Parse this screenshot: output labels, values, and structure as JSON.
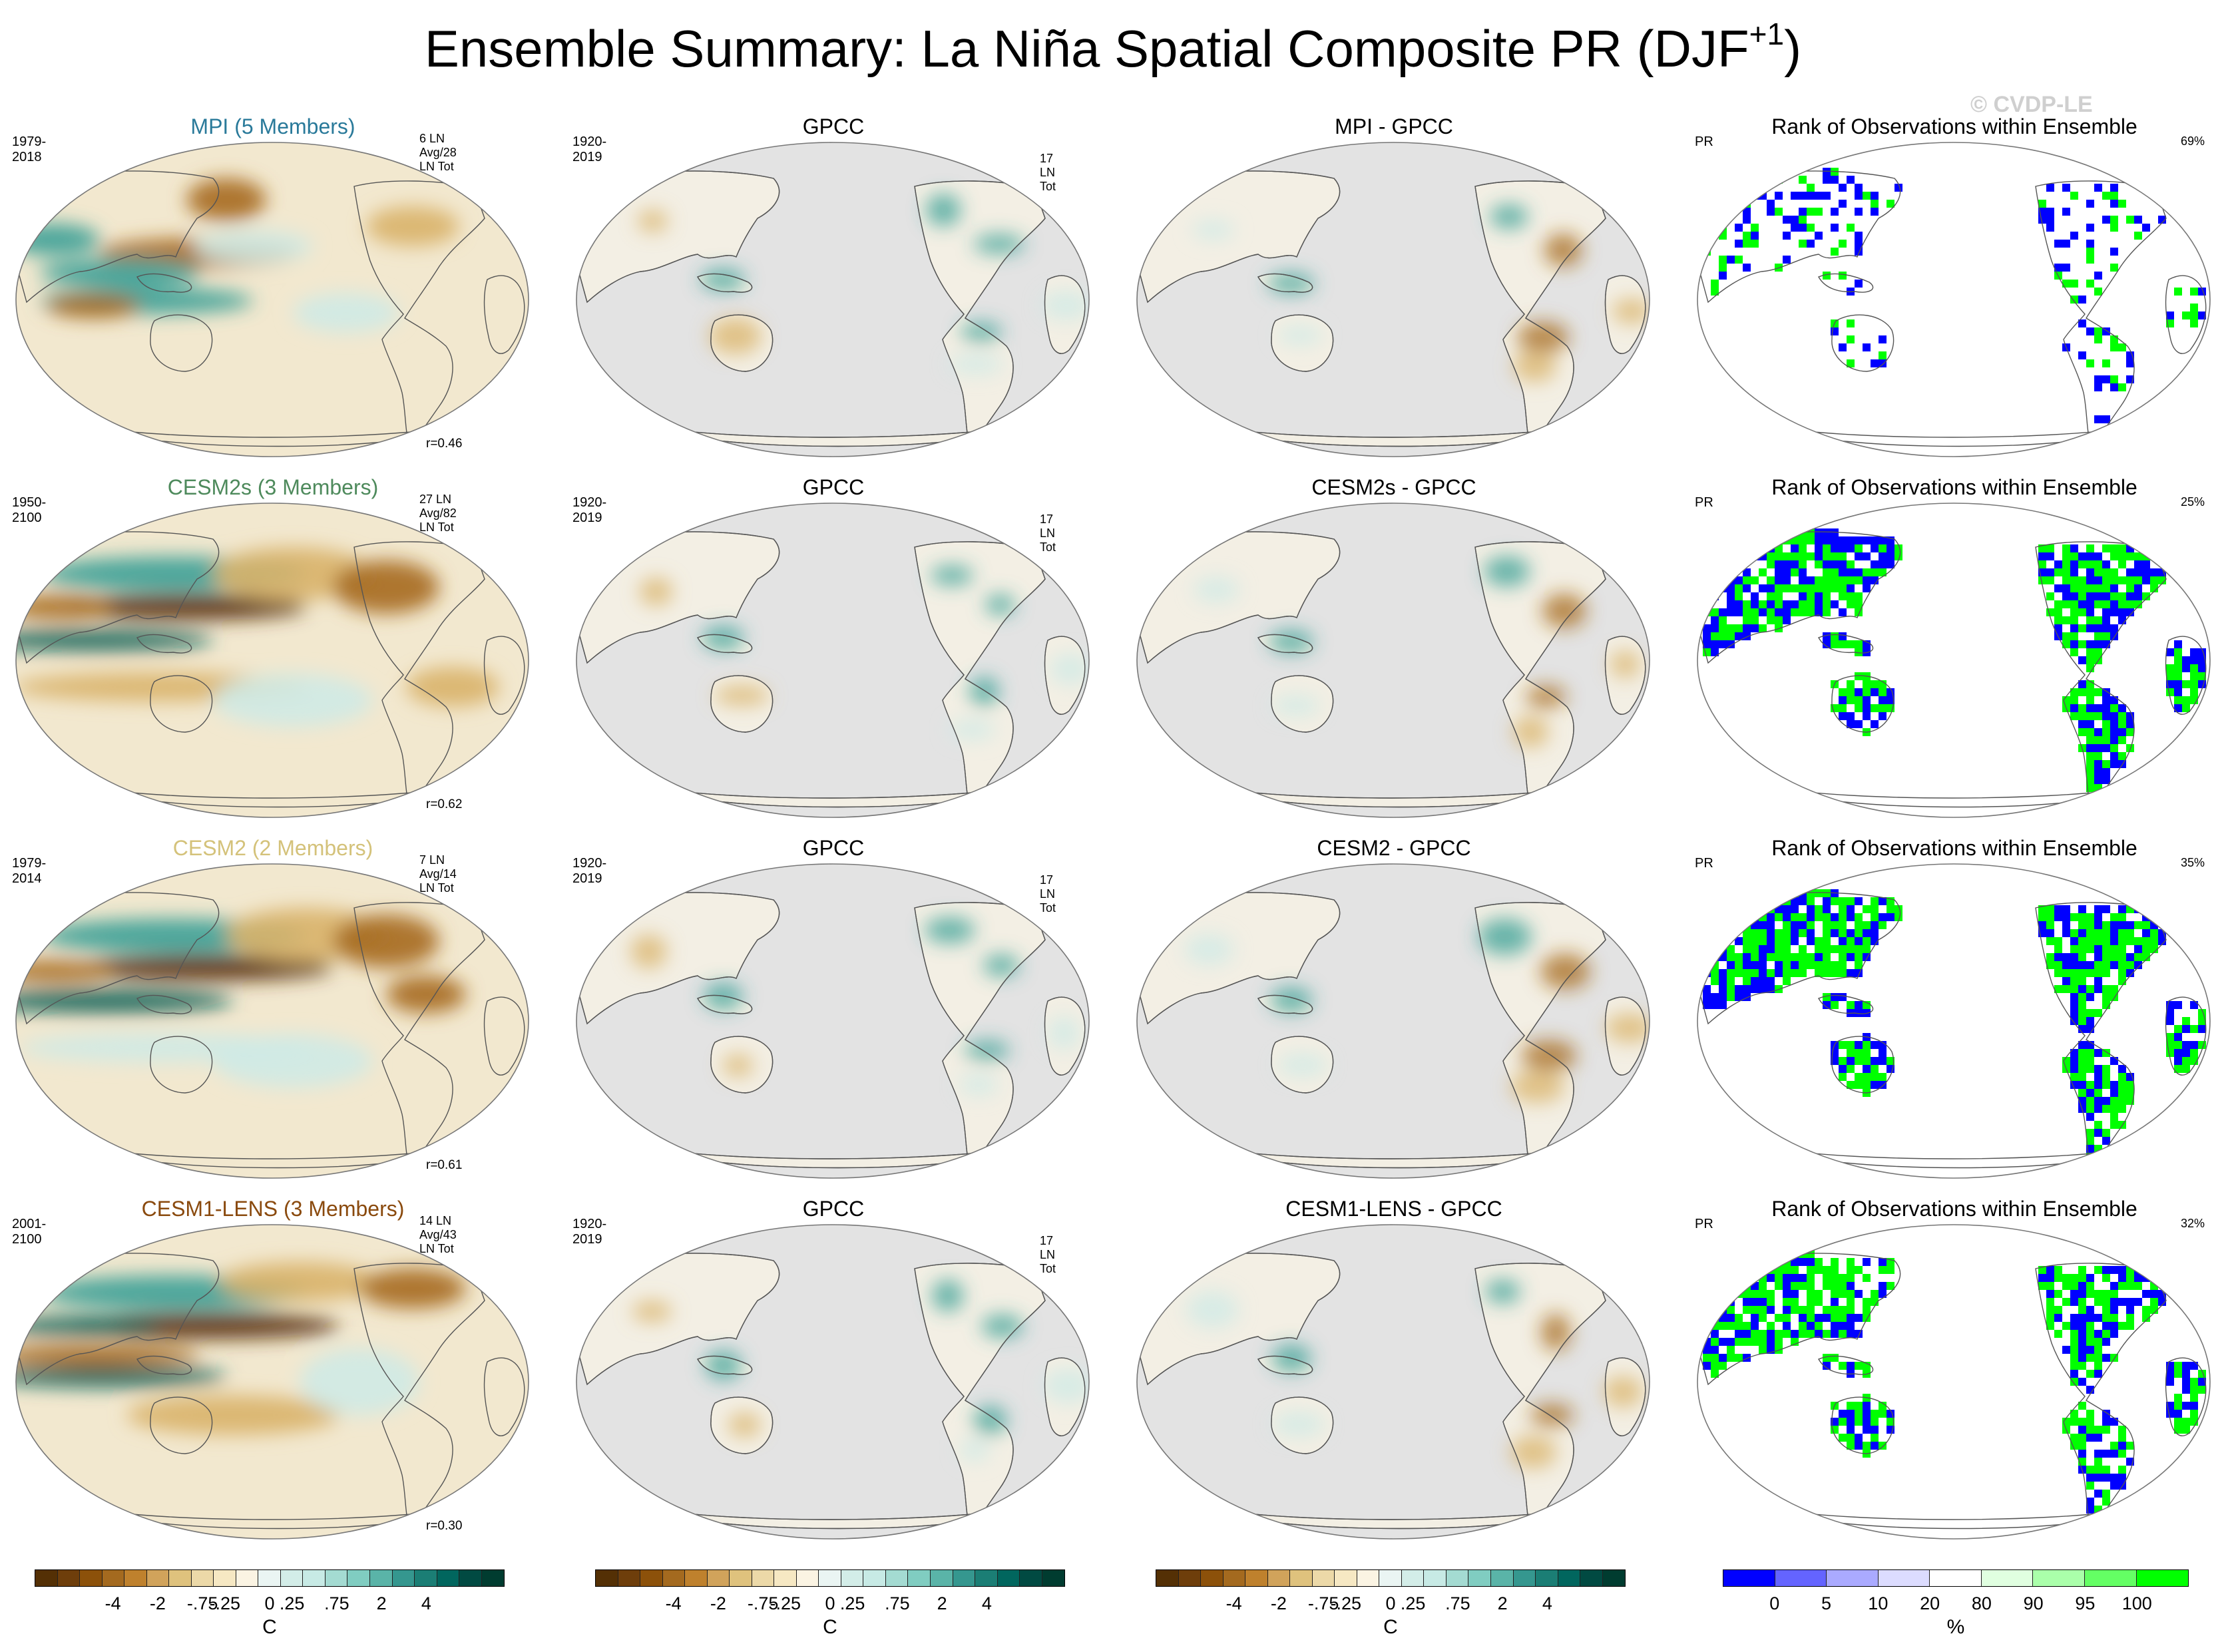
{
  "title": {
    "main": "Ensemble Summary: La Niña Spatial Composite PR (DJF",
    "sup": "+1",
    "close": ")"
  },
  "watermark": "© CVDP-LE",
  "colors": {
    "brown_dark": "#5a3208",
    "brown": "#a66a1e",
    "tan": "#d9b36a",
    "cream": "#f2e8cf",
    "teal_light": "#cfeae6",
    "teal": "#3aa096",
    "teal_dark": "#0a5f55",
    "ocean_gray": "#e3e3e3",
    "coast": "#555555",
    "rank_blue": "#0000ff",
    "rank_green": "#00ff00"
  },
  "rows": [
    {
      "model": {
        "title": "MPI (5 Members)",
        "color": "#2a7a9a",
        "years": "1979-2018",
        "count": "6 LN Avg/28 LN Tot",
        "corr": "r=0.46"
      },
      "obs": {
        "title": "GPCC",
        "years": "1920-2019",
        "count": "17 LN Tot"
      },
      "diff": {
        "title": "MPI - GPCC"
      },
      "rank": {
        "title": "Rank of Observations within Ensemble",
        "var": "PR",
        "pct": "69%"
      }
    },
    {
      "model": {
        "title": "CESM2s (3 Members)",
        "color": "#4e8a5c",
        "years": "1950-2100",
        "count": "27 LN Avg/82 LN Tot",
        "corr": "r=0.62"
      },
      "obs": {
        "title": "GPCC",
        "years": "1920-2019",
        "count": "17 LN Tot"
      },
      "diff": {
        "title": "CESM2s - GPCC"
      },
      "rank": {
        "title": "Rank of Observations within Ensemble",
        "var": "PR",
        "pct": "25%"
      }
    },
    {
      "model": {
        "title": "CESM2 (2 Members)",
        "color": "#d4c27a",
        "years": "1979-2014",
        "count": "7 LN Avg/14 LN Tot",
        "corr": "r=0.61"
      },
      "obs": {
        "title": "GPCC",
        "years": "1920-2019",
        "count": "17 LN Tot"
      },
      "diff": {
        "title": "CESM2 - GPCC"
      },
      "rank": {
        "title": "Rank of Observations within Ensemble",
        "var": "PR",
        "pct": "35%"
      }
    },
    {
      "model": {
        "title": "CESM1-LENS (3 Members)",
        "color": "#8a4a0e",
        "years": "2001-2100",
        "count": "14 LN Avg/43 LN Tot",
        "corr": "r=0.30"
      },
      "obs": {
        "title": "GPCC",
        "years": "1920-2019",
        "count": "17 LN Tot"
      },
      "diff": {
        "title": "CESM1-LENS - GPCC"
      },
      "rank": {
        "title": "Rank of Observations within Ensemble",
        "var": "PR",
        "pct": "32%"
      }
    }
  ],
  "chart_data": {
    "type": "heatmap",
    "title": "Ensemble Summary: La Niña Spatial Composite PR (DJF+1)",
    "projection": "Robinson, Pacific-centered",
    "panels_per_row": [
      "model composite",
      "GPCC observations",
      "model - GPCC difference",
      "rank of observations within ensemble"
    ],
    "pr_colorbar": {
      "unit": "C",
      "tick_labels": [
        "-4",
        "-2",
        "-.75",
        "-.25",
        "0",
        ".25",
        ".75",
        "2",
        "4"
      ],
      "colors": [
        "#543005",
        "#6e3e0b",
        "#8c510a",
        "#a46a1f",
        "#bf812d",
        "#d1a35b",
        "#dfc27d",
        "#ecd9a8",
        "#f6e8c3",
        "#fbf4e3",
        "#eaf5f3",
        "#d3ede8",
        "#c7eae5",
        "#a4dbd2",
        "#80cdc1",
        "#5ab4a8",
        "#35978f",
        "#1b7e75",
        "#01665e",
        "#014a42",
        "#003c30"
      ]
    },
    "rank_colorbar": {
      "unit": "%",
      "tick_labels": [
        "0",
        "5",
        "10",
        "20",
        "80",
        "90",
        "95",
        "100"
      ],
      "colors": [
        "#0000ff",
        "#6464ff",
        "#aaaaff",
        "#dcdcff",
        "#ffffff",
        "#e0ffe0",
        "#aaffaa",
        "#64ff64",
        "#00ff00"
      ]
    },
    "rank_percentages": [
      {
        "model": "MPI",
        "value": 69
      },
      {
        "model": "CESM2s",
        "value": 25
      },
      {
        "model": "CESM2",
        "value": 35
      },
      {
        "model": "CESM1-LENS",
        "value": 32
      }
    ],
    "pattern_correlations": [
      {
        "model": "MPI",
        "r": 0.46
      },
      {
        "model": "CESM2s",
        "r": 0.62
      },
      {
        "model": "CESM2",
        "r": 0.61
      },
      {
        "model": "CESM1-LENS",
        "r": 0.3
      }
    ]
  }
}
